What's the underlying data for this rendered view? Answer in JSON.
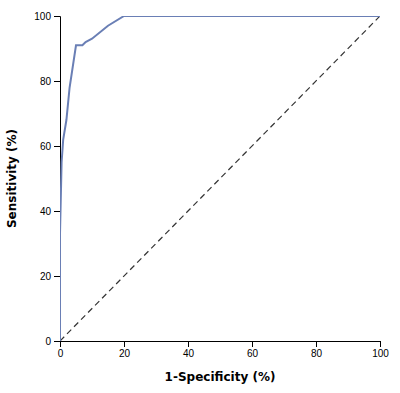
{
  "chart_data": {
    "type": "line",
    "xlabel": "1-Specificity (%)",
    "ylabel": "Sensitivity (%)",
    "xlim": [
      0,
      100
    ],
    "ylim": [
      0,
      100
    ],
    "xticks": [
      0,
      20,
      40,
      60,
      80,
      100
    ],
    "yticks": [
      0,
      20,
      40,
      60,
      80,
      100
    ],
    "grid": false,
    "series": [
      {
        "color": "#333333",
        "line_style": "dashed",
        "x": [
          0,
          100
        ],
        "values": [
          0,
          100
        ]
      },
      {
        "color": "#6a7fb5",
        "line_style": "solid",
        "x": [
          0,
          0,
          0,
          0.5,
          1,
          2,
          3,
          5,
          7,
          8,
          10,
          15,
          20,
          23,
          100
        ],
        "values": [
          0,
          5,
          33,
          55,
          62,
          68,
          78,
          91,
          91,
          92,
          93,
          97,
          100,
          100,
          100
        ]
      }
    ]
  }
}
